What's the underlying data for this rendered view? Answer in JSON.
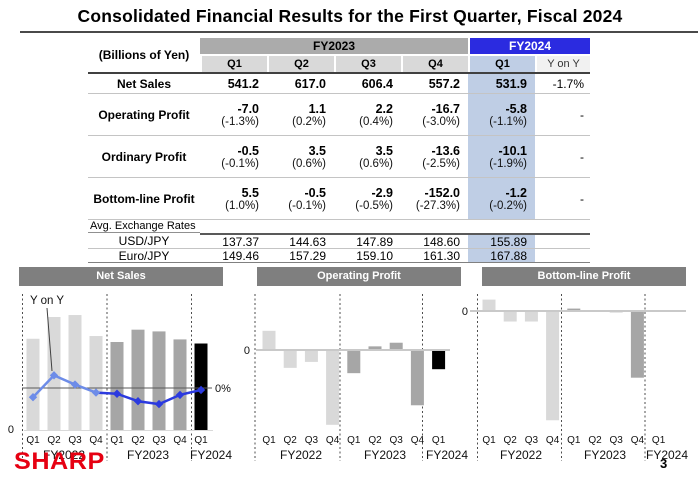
{
  "title": "Consolidated Financial Results for the First Quarter, Fiscal 2024",
  "page_number": "3",
  "logo_text": "SHARP",
  "table": {
    "unit_label": "(Billions of Yen)",
    "groups": [
      {
        "label": "FY2023",
        "columns": [
          "Q1",
          "Q2",
          "Q3",
          "Q4"
        ]
      },
      {
        "label": "FY2024",
        "columns": [
          "Q1",
          "Y on Y"
        ]
      }
    ],
    "rows": [
      {
        "label": "Net Sales",
        "values": [
          "541.2",
          "617.0",
          "606.4",
          "557.2"
        ],
        "fy2024": "531.9",
        "yoy": "-1.7%"
      },
      {
        "label": "Operating Profit",
        "values": [
          "-7.0",
          "1.1",
          "2.2",
          "-16.7"
        ],
        "pcts": [
          "(-1.3%)",
          "(0.2%)",
          "(0.4%)",
          "(-3.0%)"
        ],
        "fy2024": "-5.8",
        "fy2024_pct": "(-1.1%)",
        "yoy": "-"
      },
      {
        "label": "Ordinary Profit",
        "values": [
          "-0.5",
          "3.5",
          "3.5",
          "-13.6"
        ],
        "pcts": [
          "(-0.1%)",
          "(0.6%)",
          "(0.6%)",
          "(-2.5%)"
        ],
        "fy2024": "-10.1",
        "fy2024_pct": "(-1.9%)",
        "yoy": "-"
      },
      {
        "label": "Bottom-line Profit",
        "values": [
          "5.5",
          "-0.5",
          "-2.9",
          "-152.0"
        ],
        "pcts": [
          "(1.0%)",
          "(-0.1%)",
          "(-0.5%)",
          "(-27.3%)"
        ],
        "fy2024": "-1.2",
        "fy2024_pct": "(-0.2%)",
        "yoy": "-"
      }
    ],
    "exchange_section": {
      "label": "Avg. Exchange Rates",
      "rows": [
        {
          "label": "USD/JPY",
          "values": [
            "137.37",
            "144.63",
            "147.89",
            "148.60"
          ],
          "fy2024": "155.89"
        },
        {
          "label": "Euro/JPY",
          "values": [
            "149.46",
            "157.29",
            "159.10",
            "161.30"
          ],
          "fy2024": "167.88"
        }
      ]
    }
  },
  "colors": {
    "fy2024_header_blue": "#2B2BE0",
    "q1_highlight_blue": "#BFCEE5",
    "fy2023_header_gray": "#ABABAB",
    "subheader_gray": "#D9D9D9",
    "chart_title_bg": "#7F7F7F",
    "bar_fy2022": "#D9D9D9",
    "bar_fy2023": "#A6A6A6",
    "bar_fy2024": "#000000",
    "line_light_blue": "#6D8CE8",
    "line_dark_blue": "#2B3ADF",
    "logo_red": "#E60012"
  },
  "chart_data": [
    {
      "type": "bar",
      "title": "Net Sales",
      "group_labels": [
        "FY2022",
        "FY2023",
        "FY2024"
      ],
      "categories": [
        "Q1",
        "Q2",
        "Q3",
        "Q4",
        "Q1",
        "Q2",
        "Q3",
        "Q4",
        "Q1"
      ],
      "series": [
        {
          "name": "Net Sales (billions of yen)",
          "type": "bar",
          "values": [
            561,
            695,
            707,
            578,
            541.2,
            617.0,
            606.4,
            557.2,
            531.9
          ]
        },
        {
          "name": "Y on Y (%)",
          "type": "line",
          "values": [
            -8,
            11,
            3,
            -4,
            -5,
            -11.5,
            -14,
            -6,
            -1.7
          ]
        }
      ],
      "annotations": {
        "line_label": "Y on Y",
        "zero_pct_label": "0%",
        "axis_zero_label": "0"
      },
      "ylim_bars": [
        0,
        760
      ],
      "legend": "none"
    },
    {
      "type": "bar",
      "title": "Operating Profit",
      "group_labels": [
        "FY2022",
        "FY2023",
        "FY2024"
      ],
      "categories": [
        "Q1",
        "Q2",
        "Q3",
        "Q4",
        "Q1",
        "Q2",
        "Q3",
        "Q4",
        "Q1"
      ],
      "series": [
        {
          "name": "Operating Profit (billions of yen)",
          "type": "bar",
          "values": [
            5.8,
            -5.4,
            -3.6,
            -22.6,
            -7.0,
            1.1,
            2.2,
            -16.7,
            -5.8
          ]
        }
      ],
      "annotations": {
        "axis_zero_label": "0"
      },
      "ylim": [
        -26,
        8
      ],
      "legend": "none"
    },
    {
      "type": "bar",
      "title": "Bottom-line Profit",
      "group_labels": [
        "FY2022",
        "FY2023",
        "FY2024"
      ],
      "categories": [
        "Q1",
        "Q2",
        "Q3",
        "Q4",
        "Q1",
        "Q2",
        "Q3",
        "Q4",
        "Q1"
      ],
      "series": [
        {
          "name": "Bottom-line Profit (billions of yen)",
          "type": "bar",
          "values": [
            26,
            -24,
            -24,
            -249,
            5.5,
            -0.5,
            -2.9,
            -152.0,
            -1.2
          ]
        }
      ],
      "annotations": {
        "axis_zero_label": "0"
      },
      "ylim": [
        -260,
        40
      ],
      "legend": "none"
    }
  ]
}
